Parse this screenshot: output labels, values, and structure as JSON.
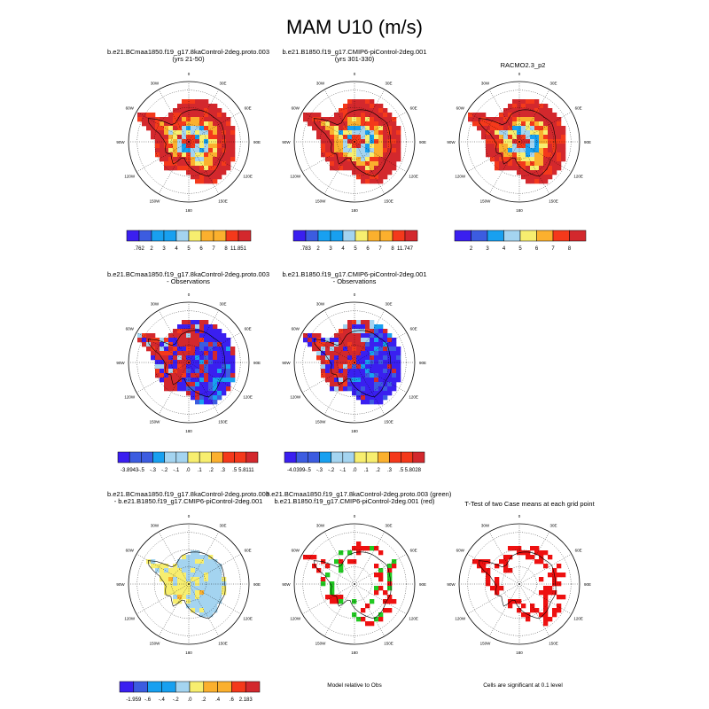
{
  "title": "MAM U10 (m/s)",
  "colors": {
    "full": [
      "#3a1ff0",
      "#3c5ce0",
      "#18a0f0",
      "#a4d4f0",
      "#f7ee6f",
      "#fbb02e",
      "#f4391b",
      "#d3282d"
    ],
    "diff": [
      "#3a1ff0",
      "#3c5ce0",
      "#18a0f0",
      "#a4d4f0",
      "#f7ee6f",
      "#fbb02e",
      "#f4391b",
      "#d3282d"
    ],
    "sig_green": "#22c922",
    "sig_red": "#ee1010"
  },
  "lon_labels": [
    "0",
    "30E",
    "60E",
    "90E",
    "120E",
    "150E",
    "180",
    "150W",
    "120W",
    "90W",
    "60W",
    "30W"
  ],
  "panels": [
    {
      "id": "p1",
      "title1": "b.e21.BCmaa1850.f19_g17.8kaControl-2deg.proto.003",
      "title2": "(yrs 21-50)",
      "kind": "full",
      "seed": 3
    },
    {
      "id": "p2",
      "title1": "b.e21.B1850.f19_g17.CMIP6-piControl-2deg.001",
      "title2": "(yrs 301-330)",
      "kind": "full",
      "seed": 7
    },
    {
      "id": "p3",
      "title1": "RACMO2.3_p2",
      "title2": "",
      "kind": "full",
      "seed": 11
    },
    {
      "id": "p4",
      "title1": "b.e21.BCmaa1850.f19_g17.8kaControl-2deg.proto.003",
      "title2": "- Observations",
      "kind": "obsdiff",
      "seed": 5
    },
    {
      "id": "p5",
      "title1": "b.e21.B1850.f19_g17.CMIP6-piControl-2deg.001",
      "title2": "- Observations",
      "kind": "obsdiff",
      "seed": 9
    },
    {
      "id": "p6",
      "title1": "b.e21.BCmaa1850.f19_g17.8kaControl-2deg.proto.003",
      "title2": "- b.e21.B1850.f19_g17.CMIP6-piControl-2deg.001",
      "kind": "casediff",
      "seed": 13
    },
    {
      "id": "p7",
      "title1": "b.e21.BCmaa1850.f19_g17.8kaControl-2deg.proto.003 (green)",
      "title2": "b.e21.B1850.f19_g17.CMIP6-piControl-2deg.001 (red)",
      "kind": "rel",
      "seed": 17
    },
    {
      "id": "p8",
      "title1": "T-Test of two Case means at each grid point",
      "title2": "",
      "kind": "ttest",
      "seed": 21
    }
  ],
  "labelbars": [
    {
      "id": "lb1",
      "labels": [
        ".762",
        "2",
        "3",
        "4",
        "5",
        "6",
        "7",
        "8",
        "11.851"
      ],
      "palette": "full"
    },
    {
      "id": "lb2",
      "labels": [
        ".783",
        "2",
        "3",
        "4",
        "5",
        "6",
        "7",
        "8",
        "11.747"
      ],
      "palette": "full"
    },
    {
      "id": "lb3",
      "labels": [
        "2",
        "3",
        "4",
        "5",
        "6",
        "7",
        "8"
      ],
      "palette": "full"
    },
    {
      "id": "lb4",
      "labels": [
        "-3.8943",
        "-.5",
        "-.3",
        "-.2",
        "-.1",
        ".0",
        ".1",
        ".2",
        ".3",
        ".5",
        "5.8111"
      ],
      "palette": "diff"
    },
    {
      "id": "lb5",
      "labels": [
        "-4.0399",
        "-.5",
        "-.3",
        "-.2",
        "-.1",
        ".0",
        ".1",
        ".2",
        ".3",
        ".5",
        "5.8028"
      ],
      "palette": "diff"
    },
    {
      "id": "lb6",
      "labels": [
        "-1.959",
        "-.6",
        "-.4",
        "-.2",
        ".0",
        ".2",
        ".4",
        ".6",
        "2.183"
      ],
      "palette": "diff"
    }
  ],
  "notes": {
    "rel": "Model relative to Obs",
    "ttest": "Cells are significant at 0.1 level"
  },
  "chart_data": [
    {
      "type": "heatmap",
      "title": "b.e21.BCmaa1850.f19_g17.8kaControl-2deg.proto.003 (yrs 21-50)",
      "colorbar": [
        0.762,
        2,
        3,
        4,
        5,
        6,
        7,
        8,
        11.851
      ]
    },
    {
      "type": "heatmap",
      "title": "b.e21.B1850.f19_g17.CMIP6-piControl-2deg.001 (yrs 301-330)",
      "colorbar": [
        0.783,
        2,
        3,
        4,
        5,
        6,
        7,
        8,
        11.747
      ]
    },
    {
      "type": "heatmap",
      "title": "RACMO2.3_p2",
      "colorbar": [
        2,
        3,
        4,
        5,
        6,
        7,
        8
      ]
    },
    {
      "type": "heatmap",
      "title": "b.e21.BCmaa1850.f19_g17.8kaControl-2deg.proto.003 - Observations",
      "colorbar": [
        -3.8943,
        -0.5,
        -0.3,
        -0.2,
        -0.1,
        0.0,
        0.1,
        0.2,
        0.3,
        0.5,
        5.8111
      ]
    },
    {
      "type": "heatmap",
      "title": "b.e21.B1850.f19_g17.CMIP6-piControl-2deg.001 - Observations",
      "colorbar": [
        -4.0399,
        -0.5,
        -0.3,
        -0.2,
        -0.1,
        0.0,
        0.1,
        0.2,
        0.3,
        0.5,
        5.8028
      ]
    },
    {
      "type": "heatmap",
      "title": "b.e21.BCmaa1850.f19_g17.8kaControl-2deg.proto.003 - b.e21.B1850.f19_g17.CMIP6-piControl-2deg.001",
      "colorbar": [
        -1.959,
        -0.6,
        -0.4,
        -0.2,
        0.0,
        0.2,
        0.4,
        0.6,
        2.183
      ]
    }
  ]
}
